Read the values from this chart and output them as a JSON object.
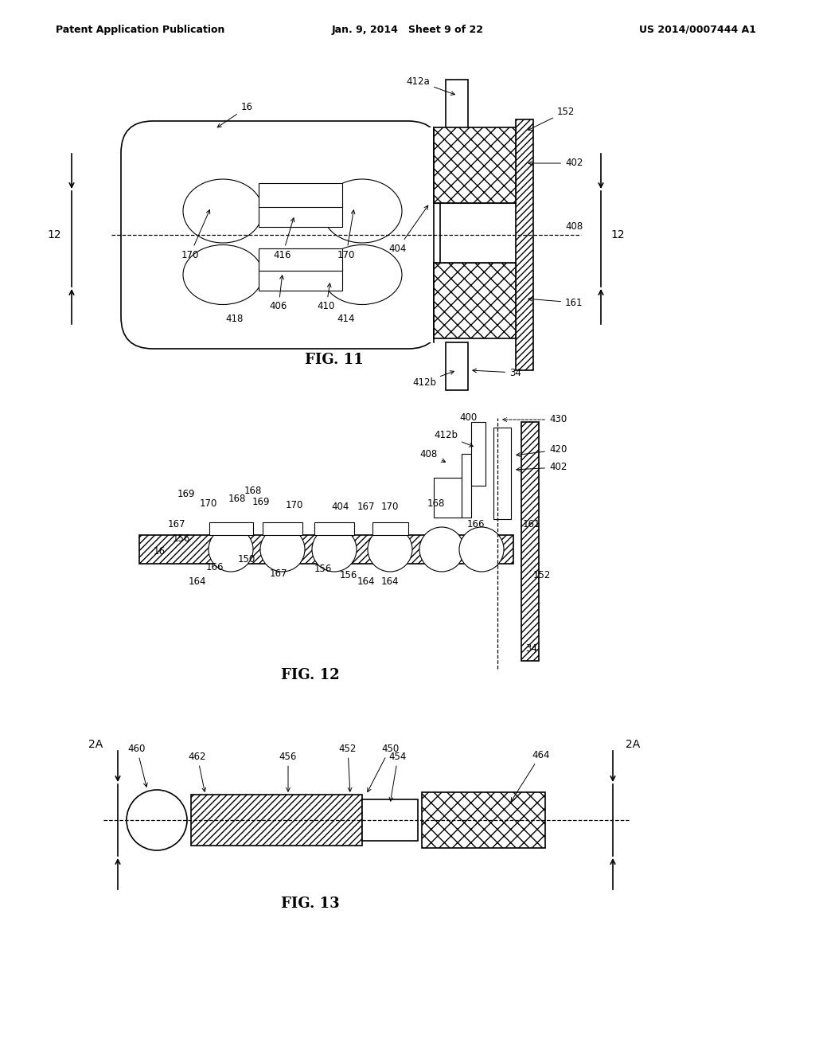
{
  "header_left": "Patent Application Publication",
  "header_center": "Jan. 9, 2014   Sheet 9 of 22",
  "header_right": "US 2014/0007444 A1",
  "fig11_caption": "FIG. 11",
  "fig12_caption": "FIG. 12",
  "fig13_caption": "FIG. 13",
  "background_color": "#ffffff",
  "line_color": "#000000"
}
